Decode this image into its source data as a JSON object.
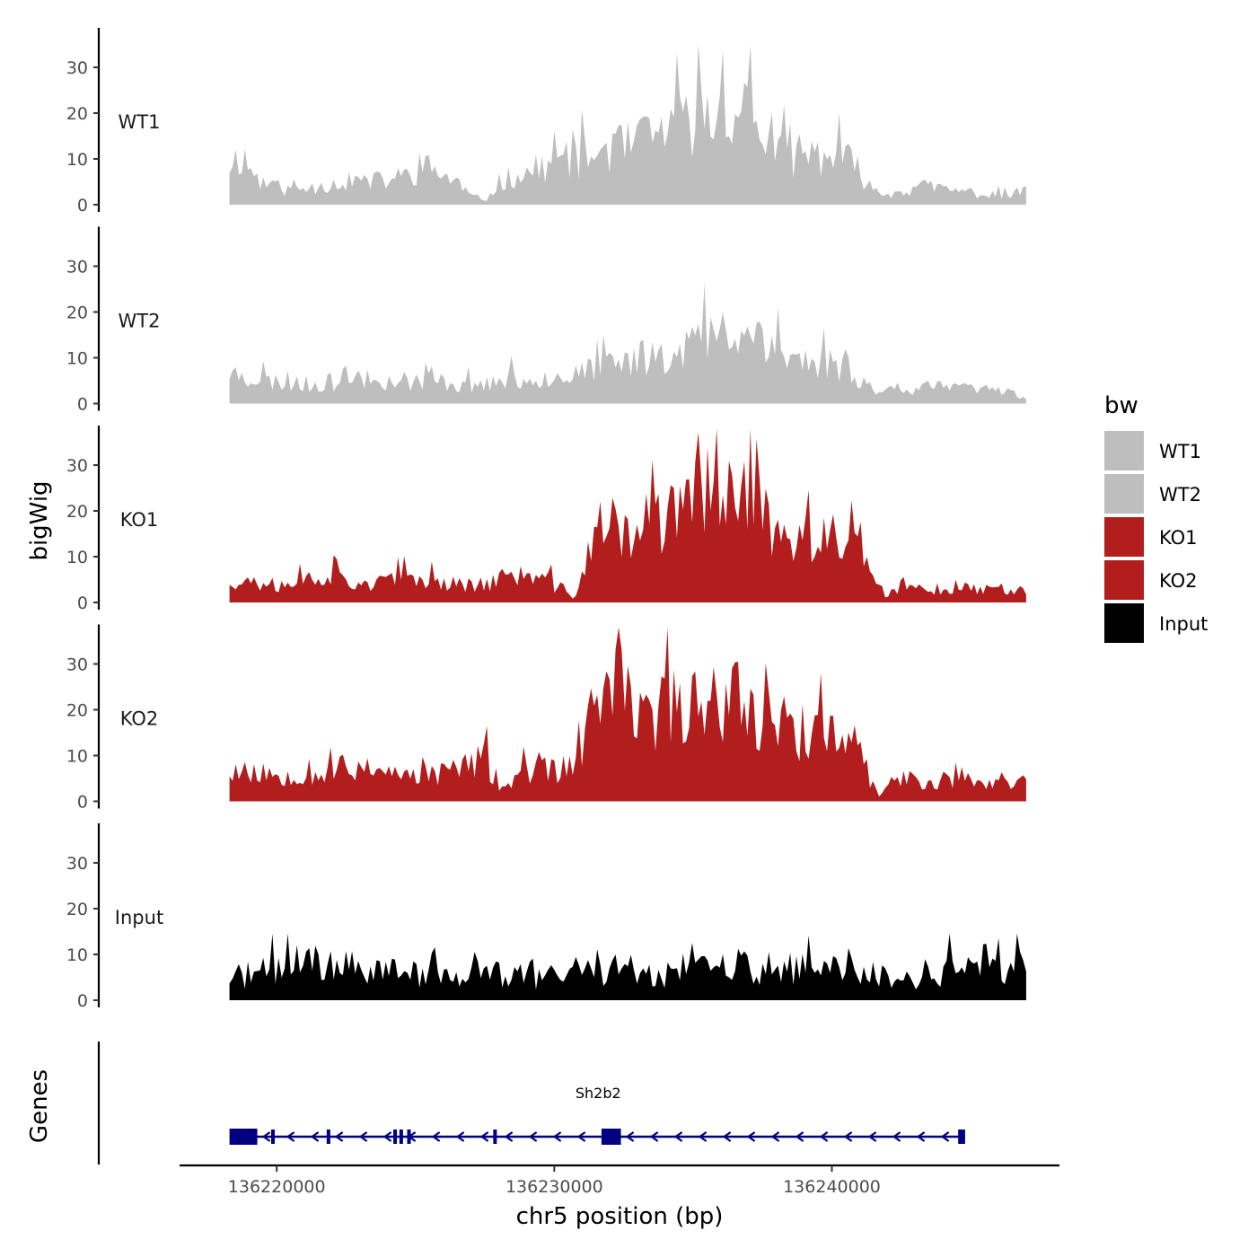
{
  "chart_data": {
    "type": "area",
    "title": "",
    "ylabel": "bigWig",
    "xlabel": "chr5 position (bp)",
    "genes_label": "Genes",
    "xlim": [
      136216500,
      136248200
    ],
    "region": [
      136218300,
      136247000
    ],
    "ylim": [
      0,
      38
    ],
    "yticks": [
      0,
      10,
      20,
      30
    ],
    "xticks": [
      136220000,
      136230000,
      136240000
    ],
    "legend": {
      "title": "bw",
      "position": "right",
      "entries": [
        {
          "name": "WT1",
          "color": "#bebebe"
        },
        {
          "name": "WT2",
          "color": "#bebebe"
        },
        {
          "name": "KO1",
          "color": "#b21e1e"
        },
        {
          "name": "KO2",
          "color": "#b21e1e"
        },
        {
          "name": "Input",
          "color": "#000000"
        }
      ]
    },
    "series": [
      {
        "name": "WT1",
        "color": "#bebebe",
        "anchors": [
          [
            136218300,
            9
          ],
          [
            136218700,
            11
          ],
          [
            136219400,
            5
          ],
          [
            136220500,
            3
          ],
          [
            136221500,
            4
          ],
          [
            136222500,
            5
          ],
          [
            136223500,
            5
          ],
          [
            136224500,
            6
          ],
          [
            136225500,
            8
          ],
          [
            136226500,
            5
          ],
          [
            136227000,
            2
          ],
          [
            136227500,
            0.5
          ],
          [
            136228000,
            5
          ],
          [
            136229000,
            7
          ],
          [
            136230000,
            9
          ],
          [
            136231000,
            10
          ],
          [
            136232000,
            12
          ],
          [
            136233000,
            13
          ],
          [
            136234000,
            16
          ],
          [
            136235000,
            18
          ],
          [
            136235800,
            20
          ],
          [
            136236500,
            21
          ],
          [
            136237200,
            20
          ],
          [
            136237800,
            12
          ],
          [
            136238500,
            10
          ],
          [
            136239500,
            11
          ],
          [
            136240500,
            10
          ],
          [
            136241000,
            7
          ],
          [
            136241700,
            2
          ],
          [
            136242500,
            3
          ],
          [
            136243500,
            4
          ],
          [
            136244500,
            3
          ],
          [
            136245500,
            2
          ],
          [
            136246500,
            2
          ],
          [
            136247000,
            3
          ]
        ],
        "amplitude": 0.45,
        "seed": 11
      },
      {
        "name": "WT2",
        "color": "#bebebe",
        "anchors": [
          [
            136218300,
            7
          ],
          [
            136219500,
            5
          ],
          [
            136221000,
            4
          ],
          [
            136222500,
            5
          ],
          [
            136224000,
            5
          ],
          [
            136225500,
            5
          ],
          [
            136227000,
            4
          ],
          [
            136228500,
            5
          ],
          [
            136230000,
            6
          ],
          [
            136231500,
            7
          ],
          [
            136232500,
            9
          ],
          [
            136233500,
            11
          ],
          [
            136234500,
            12
          ],
          [
            136235500,
            14
          ],
          [
            136236500,
            15
          ],
          [
            136237500,
            16
          ],
          [
            136238300,
            10
          ],
          [
            136239500,
            9
          ],
          [
            136240500,
            8
          ],
          [
            136241500,
            3
          ],
          [
            136242500,
            3
          ],
          [
            136243500,
            4
          ],
          [
            136244500,
            3
          ],
          [
            136245500,
            3
          ],
          [
            136246500,
            3
          ],
          [
            136247000,
            1
          ]
        ],
        "amplitude": 0.45,
        "seed": 23
      },
      {
        "name": "KO1",
        "color": "#b21e1e",
        "anchors": [
          [
            136218300,
            5
          ],
          [
            136219500,
            4
          ],
          [
            136220500,
            4
          ],
          [
            136221500,
            6
          ],
          [
            136222500,
            5
          ],
          [
            136223500,
            4
          ],
          [
            136224500,
            5
          ],
          [
            136225500,
            5
          ],
          [
            136226500,
            4
          ],
          [
            136227500,
            4
          ],
          [
            136228500,
            6
          ],
          [
            136229500,
            5
          ],
          [
            136230300,
            3
          ],
          [
            136230700,
            1
          ],
          [
            136231200,
            10
          ],
          [
            136231700,
            17
          ],
          [
            136232500,
            15
          ],
          [
            136233500,
            17
          ],
          [
            136234500,
            19
          ],
          [
            136235300,
            23
          ],
          [
            136236000,
            27
          ],
          [
            136236800,
            26
          ],
          [
            136237300,
            28
          ],
          [
            136237800,
            14
          ],
          [
            136238500,
            13
          ],
          [
            136239500,
            13
          ],
          [
            136240500,
            14
          ],
          [
            136241000,
            13
          ],
          [
            136241500,
            4
          ],
          [
            136242000,
            1
          ],
          [
            136242500,
            3
          ],
          [
            136243500,
            3
          ],
          [
            136244500,
            3
          ],
          [
            136245500,
            3
          ],
          [
            136246500,
            3
          ],
          [
            136247000,
            3
          ]
        ],
        "amplitude": 0.45,
        "seed": 37
      },
      {
        "name": "KO2",
        "color": "#b21e1e",
        "anchors": [
          [
            136218300,
            7
          ],
          [
            136219500,
            6
          ],
          [
            136220500,
            6
          ],
          [
            136221500,
            6
          ],
          [
            136222500,
            7
          ],
          [
            136223500,
            8
          ],
          [
            136224500,
            5
          ],
          [
            136225500,
            6
          ],
          [
            136226500,
            7
          ],
          [
            136227500,
            9
          ],
          [
            136228000,
            3
          ],
          [
            136229000,
            6
          ],
          [
            136230000,
            7
          ],
          [
            136230700,
            7
          ],
          [
            136231000,
            12
          ],
          [
            136231500,
            22
          ],
          [
            136232300,
            23
          ],
          [
            136233000,
            18
          ],
          [
            136234000,
            20
          ],
          [
            136235000,
            22
          ],
          [
            136236000,
            23
          ],
          [
            136237000,
            21
          ],
          [
            136238000,
            18
          ],
          [
            136239000,
            15
          ],
          [
            136240000,
            14
          ],
          [
            136240800,
            12
          ],
          [
            136241300,
            6
          ],
          [
            136241700,
            1
          ],
          [
            136242300,
            5
          ],
          [
            136243500,
            4
          ],
          [
            136244500,
            5
          ],
          [
            136245500,
            4
          ],
          [
            136246500,
            4
          ],
          [
            136247000,
            4
          ]
        ],
        "amplitude": 0.45,
        "seed": 53
      },
      {
        "name": "Input",
        "color": "#000000",
        "anchors": [
          [
            136218300,
            5
          ],
          [
            136219500,
            6
          ],
          [
            136220500,
            8
          ],
          [
            136221500,
            8
          ],
          [
            136222500,
            7
          ],
          [
            136223500,
            7
          ],
          [
            136224500,
            6
          ],
          [
            136225500,
            6
          ],
          [
            136226500,
            5
          ],
          [
            136227500,
            6
          ],
          [
            136228500,
            5
          ],
          [
            136229500,
            5
          ],
          [
            136230500,
            6
          ],
          [
            136231500,
            6
          ],
          [
            136232500,
            7
          ],
          [
            136233500,
            6
          ],
          [
            136234500,
            6
          ],
          [
            136235500,
            7
          ],
          [
            136236500,
            7
          ],
          [
            136237500,
            7
          ],
          [
            136238500,
            7
          ],
          [
            136239500,
            6
          ],
          [
            136240500,
            7
          ],
          [
            136241500,
            6
          ],
          [
            136242500,
            4
          ],
          [
            136243500,
            5
          ],
          [
            136244500,
            7
          ],
          [
            136245500,
            6
          ],
          [
            136246500,
            8
          ],
          [
            136247000,
            6
          ]
        ],
        "amplitude": 0.55,
        "seed": 71
      }
    ],
    "genes": [
      {
        "name": "Sh2b2",
        "strand": "-",
        "start": 136218300,
        "end": 136244800,
        "exons": [
          [
            136218300,
            136219300
          ],
          [
            136219800,
            136219880
          ],
          [
            136221800,
            136221920
          ],
          [
            136224200,
            136224280
          ],
          [
            136224420,
            136224500
          ],
          [
            136224700,
            136224760
          ],
          [
            136227800,
            136227860
          ],
          [
            136231700,
            136232400
          ],
          [
            136244550,
            136244800
          ]
        ]
      }
    ]
  }
}
